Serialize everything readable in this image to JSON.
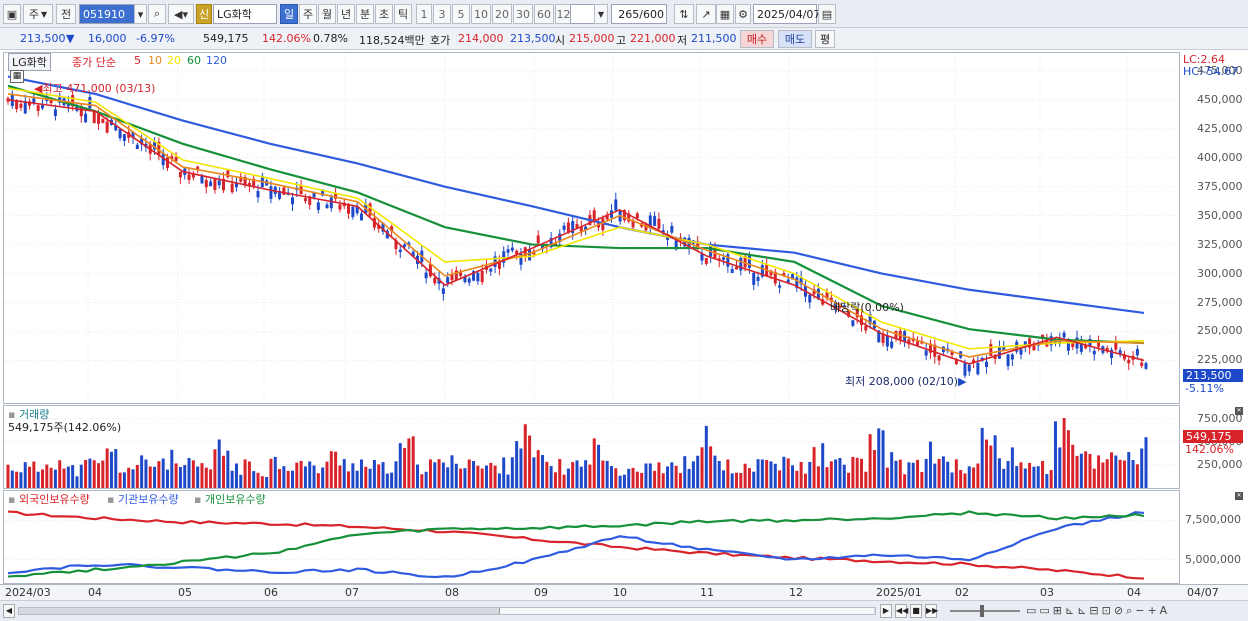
{
  "toolbar": {
    "period_label": "주",
    "prev_label": "전",
    "code": "051910",
    "stock_name": "LG화학",
    "badge": "신",
    "periods": [
      "일",
      "주",
      "월",
      "년",
      "분",
      "초",
      "틱"
    ],
    "minutes": [
      "1",
      "3",
      "5",
      "10",
      "20",
      "30",
      "60",
      "120"
    ],
    "count": "265",
    "count_total": "/600",
    "date": "2025/04/07"
  },
  "quote": {
    "price": "213,500",
    "change_arrow": "▼",
    "change": "16,000",
    "change_pct": "-6.97%",
    "volume": "549,175",
    "volume_ratio": "142.06%",
    "turnover": "0.78%",
    "amount": "118,524백만",
    "bid_label": "호가",
    "ask_price": "214,000",
    "bid_price": "213,500",
    "open_label": "시",
    "open": "215,000",
    "high_label": "고",
    "high": "221,000",
    "low_label": "저",
    "low": "211,500",
    "buy_label": "매수",
    "sell_label": "매도",
    "avg_label": "평"
  },
  "price_pane": {
    "title": "LG화학",
    "legend_prefix": "종가 단순",
    "ma_labels": [
      "5",
      "10",
      "20",
      "60",
      "120"
    ],
    "ma_colors": [
      "#d8232a",
      "#e8891a",
      "#f2e600",
      "#16913a",
      "#2f5be0"
    ],
    "high_note": "최고 471,000 (03/13)",
    "low_note": "최저 208,000 (02/10)",
    "dividend_note": "배당락(0.00%)",
    "lc": "LC:2.64",
    "hc": "HC:-54.67",
    "current_price_tag": "213,500",
    "current_pct_tag": "-5.11%"
  },
  "volume_pane": {
    "title": "거래량",
    "info": "549,175주(142.06%)",
    "current_tag": "549,175",
    "current_pct_tag": "142.06%"
  },
  "holdings_pane": {
    "legends": [
      {
        "label": "외국인보유수량",
        "color": "#d8232a"
      },
      {
        "label": "기관보유수량",
        "color": "#2f5be0"
      },
      {
        "label": "개인보유수량",
        "color": "#16913a"
      }
    ]
  },
  "x_labels": [
    "2024/03",
    "04",
    "05",
    "06",
    "07",
    "08",
    "09",
    "10",
    "11",
    "12",
    "2025/01",
    "02",
    "03",
    "04",
    "04/07"
  ],
  "chart_data": [
    {
      "type": "line",
      "title": "LG화학",
      "ylim": [
        190000,
        480000
      ],
      "y_ticks": [
        475000,
        450000,
        425000,
        400000,
        375000,
        350000,
        325000,
        300000,
        275000,
        250000,
        225000
      ],
      "x": [
        "2024/03",
        "04",
        "05",
        "06",
        "07",
        "08",
        "09",
        "10",
        "11",
        "12",
        "2025/01",
        "02",
        "03",
        "04"
      ],
      "series": [
        {
          "name": "5",
          "color": "#d8232a",
          "values": [
            450000,
            440000,
            388000,
            372000,
            358000,
            290000,
            322000,
            355000,
            315000,
            290000,
            248000,
            222000,
            245000,
            225000
          ]
        },
        {
          "name": "10",
          "color": "#e8891a",
          "values": [
            455000,
            445000,
            392000,
            378000,
            362000,
            298000,
            318000,
            350000,
            320000,
            295000,
            252000,
            228000,
            242000,
            240000
          ]
        },
        {
          "name": "20",
          "color": "#f2e600",
          "values": [
            460000,
            448000,
            398000,
            382000,
            365000,
            310000,
            315000,
            340000,
            325000,
            300000,
            258000,
            235000,
            240000,
            242000
          ]
        },
        {
          "name": "60",
          "color": "#16913a",
          "values": [
            462000,
            440000,
            412000,
            390000,
            370000,
            340000,
            325000,
            322000,
            322000,
            310000,
            272000,
            252000,
            243000,
            240000
          ]
        },
        {
          "name": "120",
          "color": "#2f5be0",
          "values": [
            470000,
            455000,
            432000,
            412000,
            395000,
            375000,
            358000,
            340000,
            325000,
            318000,
            300000,
            286000,
            276000,
            266000
          ]
        }
      ]
    },
    {
      "type": "bar",
      "title": "거래량",
      "ylim": [
        0,
        800000
      ],
      "y_ticks": [
        750000,
        500000,
        250000
      ],
      "values": [
        300000,
        280000,
        420000,
        260000,
        330000,
        470000,
        290000,
        350000,
        400000,
        310000,
        280000,
        520000,
        300000,
        260000,
        380000,
        340000,
        290000,
        420000,
        360000,
        300000,
        280000,
        540000,
        310000,
        350000,
        410000,
        290000,
        320000,
        700000,
        400000,
        300000,
        330000,
        560000,
        290000,
        310000,
        360000,
        280000,
        340000,
        710000,
        300000,
        260000,
        380000,
        330000,
        300000,
        490000,
        320000,
        350000,
        620000,
        400000,
        300000,
        540000,
        330000,
        280000,
        700000,
        420000,
        360000,
        300000,
        780000,
        460000,
        390000,
        520000,
        430000,
        549175
      ]
    },
    {
      "type": "line",
      "title": "",
      "ylim": [
        3500000,
        9000000
      ],
      "y_ticks": [
        7500000,
        5000000
      ],
      "x": [
        "2024/03",
        "04",
        "05",
        "06",
        "07",
        "08",
        "09",
        "10",
        "11",
        "12",
        "2025/01",
        "02",
        "03",
        "04"
      ],
      "series": [
        {
          "name": "외국인보유수량",
          "color": "#d8232a",
          "values": [
            8000000,
            7650000,
            7400000,
            7300000,
            7100000,
            6800000,
            6300000,
            5800000,
            5400000,
            5100000,
            4900000,
            4700000,
            4300000,
            3850000
          ]
        },
        {
          "name": "기관보유수량",
          "color": "#2f5be0",
          "values": [
            4200000,
            4700000,
            4500000,
            4200000,
            4350000,
            3850000,
            4950000,
            6500000,
            5600000,
            5000000,
            5300000,
            5000000,
            7000000,
            8050000
          ]
        },
        {
          "name": "개인보유수량",
          "color": "#16913a",
          "values": [
            3950000,
            4350000,
            4850000,
            5400000,
            6600000,
            6950000,
            7000000,
            7150000,
            7450000,
            7500000,
            7650000,
            8000000,
            7650000,
            7850000
          ]
        }
      ]
    }
  ]
}
